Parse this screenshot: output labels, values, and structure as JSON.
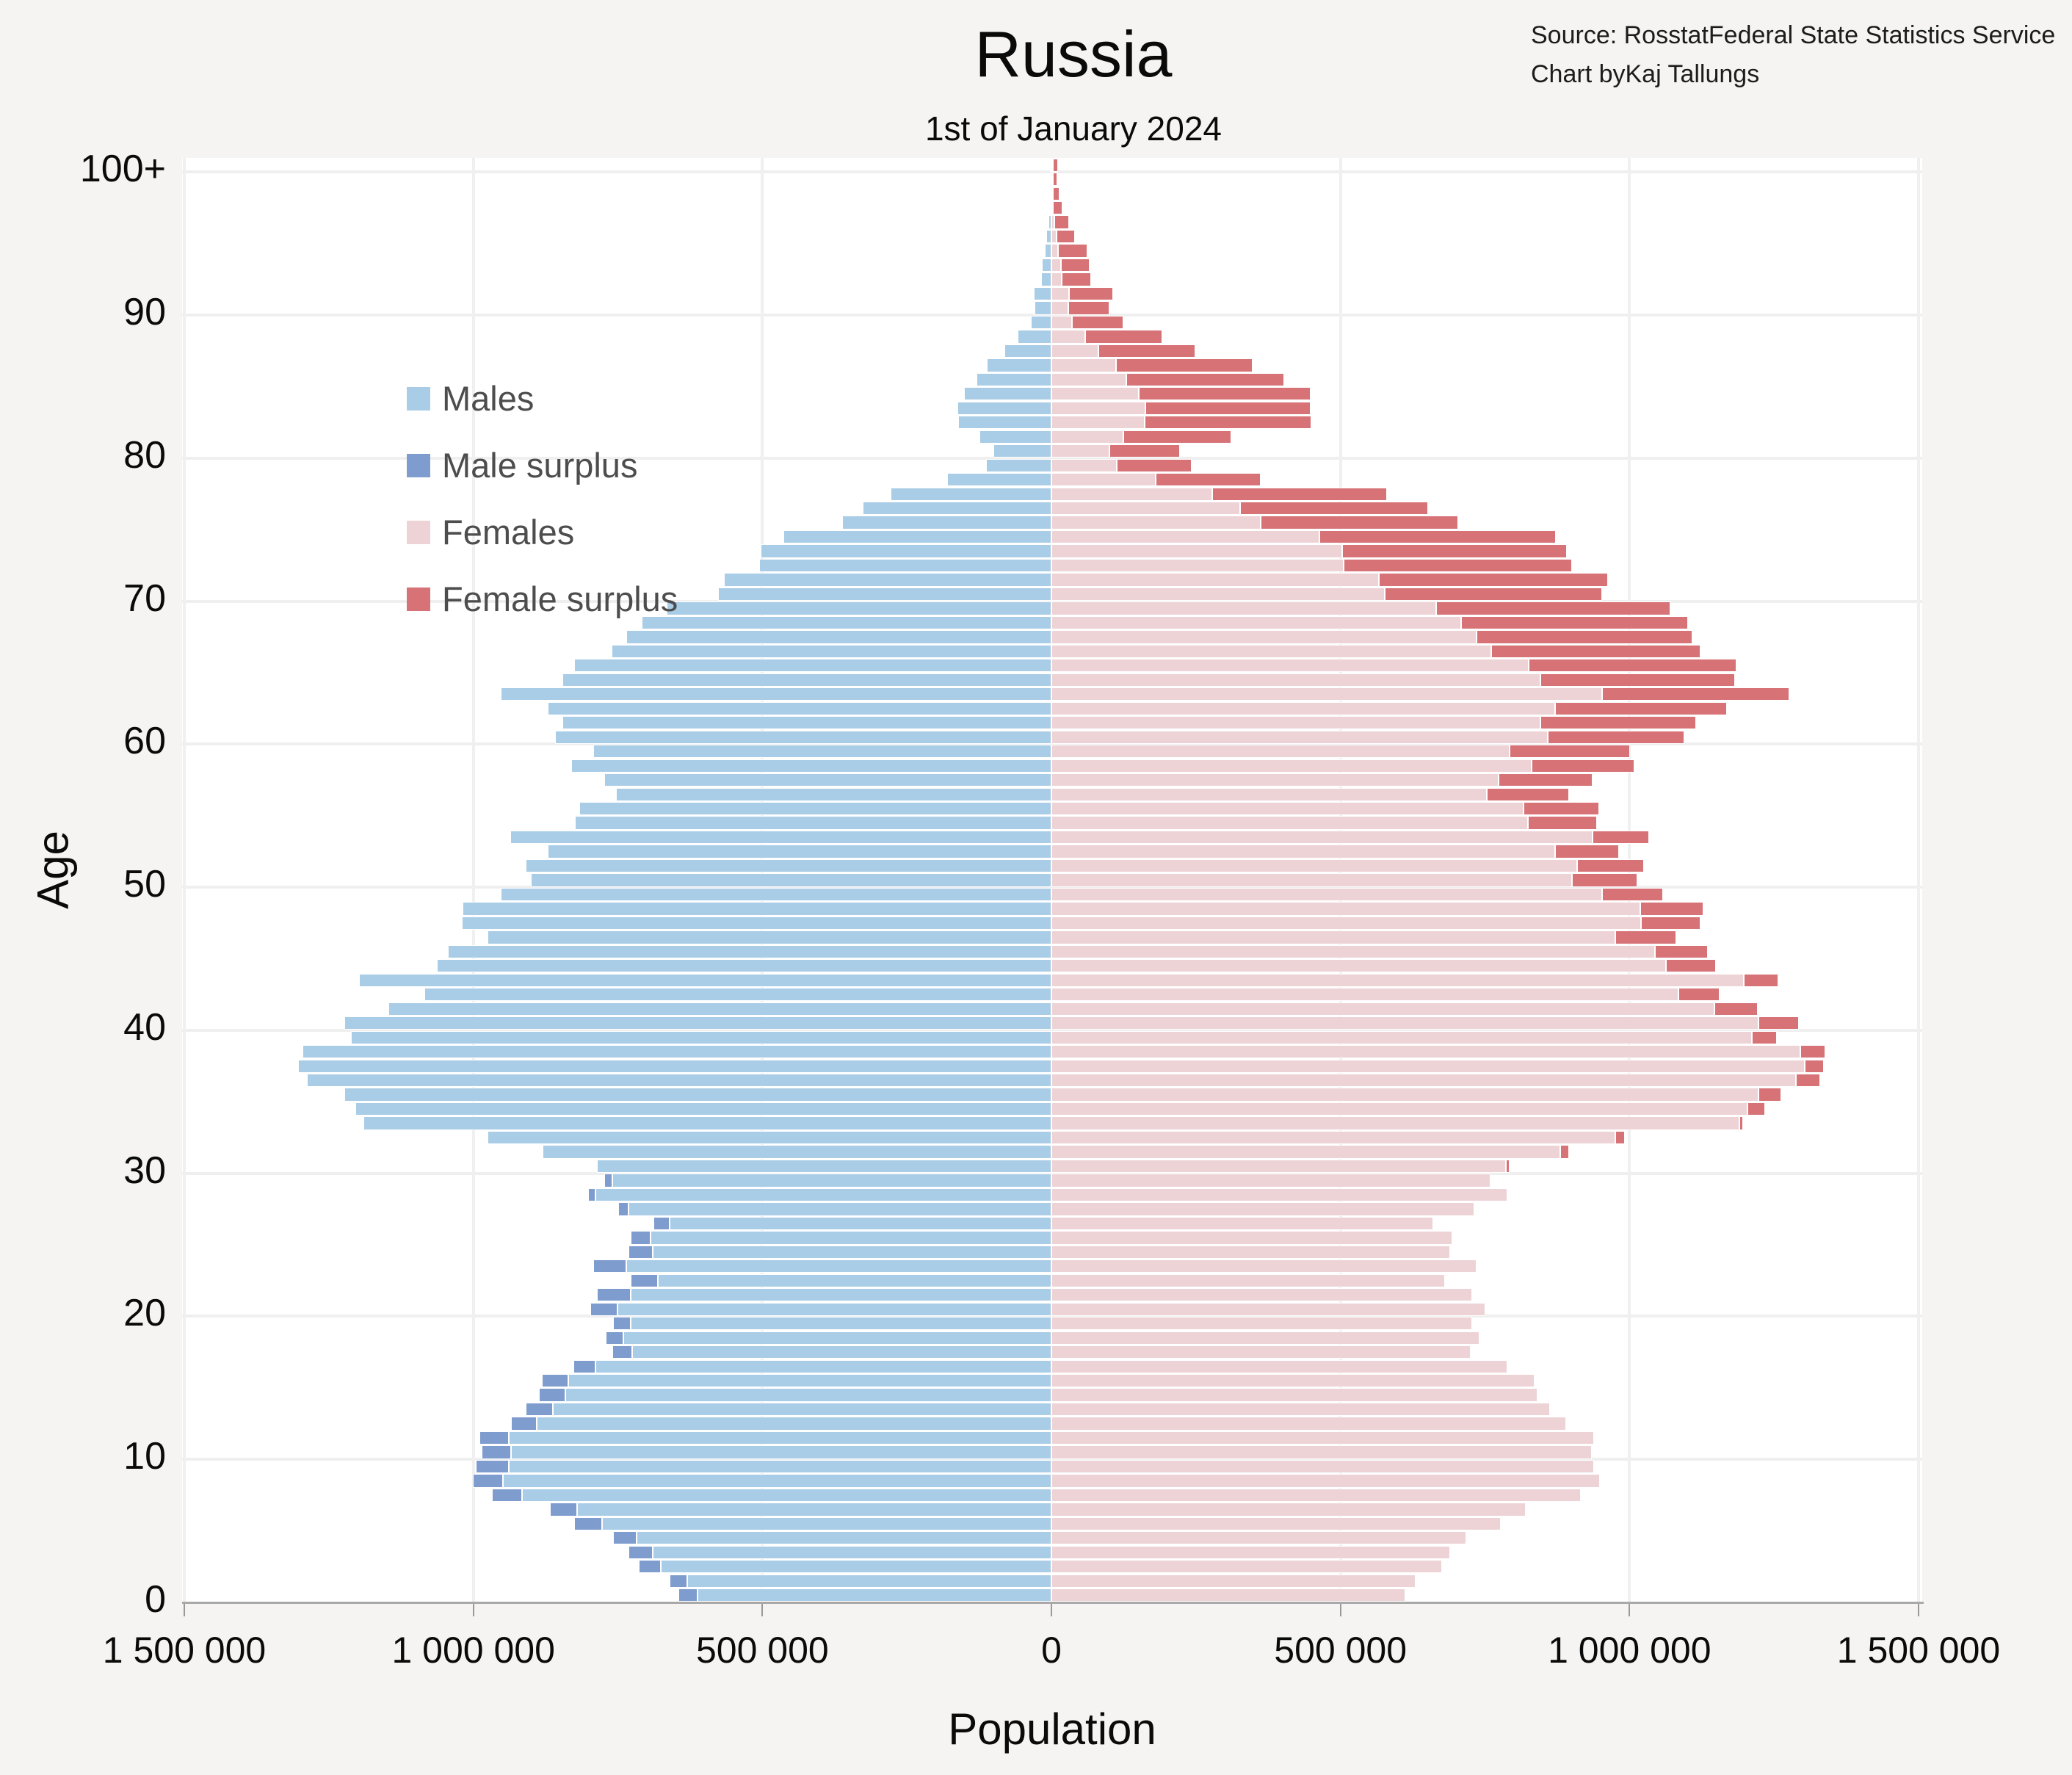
{
  "header": {
    "title": "Russia",
    "subtitle": "1st of January 2024",
    "source_label": "Source: Rosstat",
    "source_name": "Federal State Statistics Service",
    "credit_label": "Chart by",
    "credit_name": "Kaj Tallungs"
  },
  "chart_data": {
    "type": "bar",
    "variant": "population-pyramid",
    "title": "Russia",
    "subtitle": "1st of January 2024",
    "xlabel": "Population",
    "ylabel": "Age",
    "xlim": [
      -1500000,
      1500000
    ],
    "grid": true,
    "legend_position": "top-left",
    "legend": [
      {
        "label": "Males",
        "color": "#a9cde6"
      },
      {
        "label": "Male surplus",
        "color": "#7f9cce"
      },
      {
        "label": "Females",
        "color": "#eed3d6"
      },
      {
        "label": "Female surplus",
        "color": "#d77377"
      }
    ],
    "x_ticks": [
      "1 500 000",
      "1 000 000",
      "500 000",
      "0",
      "500 000",
      "1 000 000",
      "1 500 000"
    ],
    "x_tick_values": [
      -1500000,
      -1000000,
      -500000,
      0,
      500000,
      1000000,
      1500000
    ],
    "y_ticks": [
      "0",
      "10",
      "20",
      "30",
      "40",
      "50",
      "60",
      "70",
      "80",
      "90",
      "100+"
    ],
    "y_tick_ages": [
      0,
      10,
      20,
      30,
      40,
      50,
      60,
      70,
      80,
      90,
      100
    ],
    "ages": "0-100 bottom to top, one bar per single year of age, 100 = 100+",
    "series": [
      {
        "name": "male",
        "values": [
          645000,
          661000,
          714000,
          731000,
          758000,
          825000,
          867000,
          968000,
          1001000,
          996000,
          985000,
          990000,
          935000,
          910000,
          887000,
          882000,
          827000,
          760000,
          771000,
          758000,
          798000,
          786000,
          728000,
          792000,
          731000,
          728000,
          688000,
          750000,
          801000,
          773000,
          786000,
          880000,
          975000,
          1190000,
          1204000,
          1223000,
          1288000,
          1303000,
          1296000,
          1212000,
          1223000,
          1147000,
          1085000,
          1198000,
          1063000,
          1044000,
          975000,
          1020000,
          1019000,
          953000,
          901000,
          909000,
          871000,
          936000,
          824000,
          817000,
          753000,
          774000,
          831000,
          792000,
          858000,
          846000,
          871000,
          953000,
          846000,
          826000,
          761000,
          736000,
          709000,
          666000,
          577000,
          567000,
          506000,
          503000,
          463000,
          362000,
          326000,
          278000,
          180000,
          113000,
          100000,
          124000,
          161000,
          162000,
          151000,
          129000,
          112000,
          81000,
          59000,
          36000,
          29000,
          30000,
          18000,
          17000,
          12000,
          9000,
          5000,
          3000,
          3000,
          1000,
          2000
        ]
      },
      {
        "name": "female",
        "values": [
          612000,
          630000,
          676000,
          690000,
          718000,
          777000,
          820000,
          916000,
          949000,
          939000,
          935000,
          938000,
          890000,
          863000,
          841000,
          836000,
          789000,
          725000,
          741000,
          728000,
          751000,
          728000,
          681000,
          736000,
          690000,
          693000,
          661000,
          731000,
          789000,
          760000,
          792000,
          896000,
          992000,
          1196000,
          1234000,
          1262000,
          1330000,
          1336000,
          1339000,
          1255000,
          1293000,
          1222000,
          1156000,
          1258000,
          1150000,
          1136000,
          1081000,
          1123000,
          1128000,
          1058000,
          1014000,
          1025000,
          982000,
          1034000,
          944000,
          947000,
          896000,
          936000,
          1009000,
          1001000,
          1095000,
          1115000,
          1169000,
          1277000,
          1183000,
          1185000,
          1123000,
          1109000,
          1101000,
          1071000,
          953000,
          963000,
          901000,
          891000,
          872000,
          704000,
          651000,
          580000,
          362000,
          242000,
          222000,
          311000,
          450000,
          448000,
          448000,
          402000,
          348000,
          249000,
          192000,
          124000,
          100000,
          107000,
          68000,
          66000,
          62000,
          41000,
          30000,
          19000,
          14000,
          9000,
          11000
        ]
      }
    ]
  },
  "colors": {
    "male": "#a9cde6",
    "male_surplus": "#7f9cce",
    "female": "#eed3d6",
    "female_surplus": "#d77377",
    "background": "#f5f4f2",
    "plot_background": "#ffffff",
    "gridline": "#efefef",
    "axis_line": "#a9a9a9"
  }
}
